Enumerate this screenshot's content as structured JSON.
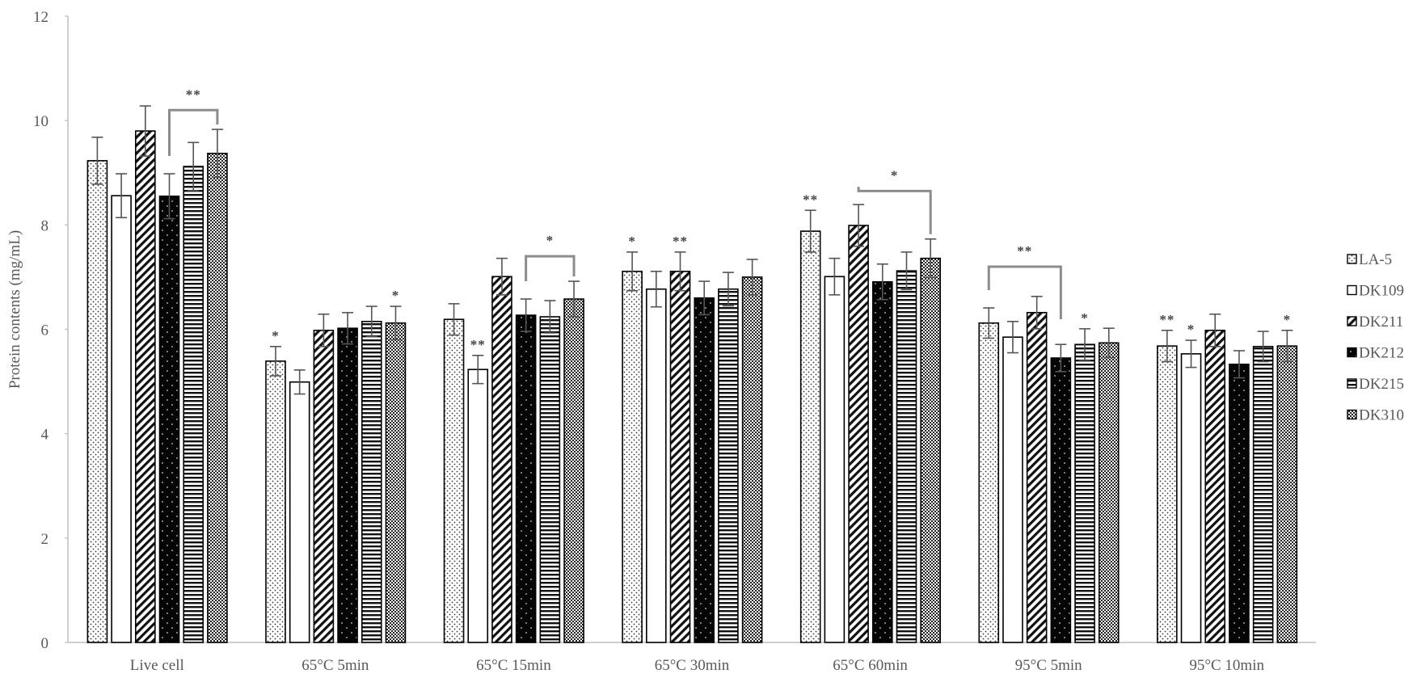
{
  "chart_data": {
    "type": "bar",
    "title": "",
    "xlabel": "",
    "ylabel": "Protein contents (mg/mL)",
    "ylim": [
      0,
      12
    ],
    "yticks": [
      0,
      2,
      4,
      6,
      8,
      10,
      12
    ],
    "grid": false,
    "legend_position": "right",
    "categories": [
      "Live cell",
      "65°C 5min",
      "65°C 15min",
      "65°C 30min",
      "65°C 60min",
      "95°C 5min",
      "95°C 10min"
    ],
    "series": [
      {
        "name": "LA-5",
        "pattern": "dots",
        "values": [
          9.23,
          5.39,
          6.19,
          7.11,
          7.88,
          6.12,
          5.68
        ],
        "errors": [
          0.45,
          0.28,
          0.3,
          0.37,
          0.4,
          0.29,
          0.3
        ]
      },
      {
        "name": "DK109",
        "pattern": "white",
        "values": [
          8.56,
          4.99,
          5.23,
          6.77,
          7.01,
          5.85,
          5.53
        ],
        "errors": [
          0.42,
          0.23,
          0.27,
          0.34,
          0.35,
          0.3,
          0.26
        ]
      },
      {
        "name": "DK211",
        "pattern": "diagonal",
        "values": [
          9.8,
          5.98,
          7.01,
          7.11,
          7.99,
          6.32,
          5.98
        ],
        "errors": [
          0.48,
          0.31,
          0.35,
          0.37,
          0.4,
          0.31,
          0.31
        ]
      },
      {
        "name": "DK212",
        "pattern": "black-dots",
        "values": [
          8.55,
          6.02,
          6.27,
          6.6,
          6.91,
          5.45,
          5.33
        ],
        "errors": [
          0.43,
          0.3,
          0.31,
          0.32,
          0.34,
          0.26,
          0.26
        ]
      },
      {
        "name": "DK215",
        "pattern": "horizontal",
        "values": [
          9.12,
          6.15,
          6.24,
          6.77,
          7.12,
          5.71,
          5.67
        ],
        "errors": [
          0.46,
          0.29,
          0.31,
          0.32,
          0.36,
          0.3,
          0.29
        ]
      },
      {
        "name": "DK310",
        "pattern": "checker",
        "values": [
          9.37,
          6.12,
          6.58,
          7.0,
          7.36,
          5.74,
          5.68
        ],
        "errors": [
          0.46,
          0.32,
          0.34,
          0.34,
          0.37,
          0.28,
          0.3
        ]
      }
    ],
    "annotations": [
      {
        "type": "bracket",
        "category": 0,
        "from": 3,
        "to": 5,
        "level": 10.2,
        "text": "**"
      },
      {
        "type": "star",
        "category": 1,
        "series": 0,
        "text": "*"
      },
      {
        "type": "star",
        "category": 1,
        "series": 5,
        "text": "*"
      },
      {
        "type": "star",
        "category": 2,
        "series": 1,
        "text": "**"
      },
      {
        "type": "bracket",
        "category": 2,
        "from": 3,
        "to": 5,
        "level": 7.4,
        "text": "*"
      },
      {
        "type": "star",
        "category": 3,
        "series": 0,
        "text": "*"
      },
      {
        "type": "star",
        "category": 3,
        "series": 2,
        "text": "**"
      },
      {
        "type": "star",
        "category": 4,
        "series": 0,
        "text": "**"
      },
      {
        "type": "bracket",
        "category": 4,
        "from": 2,
        "to": 5,
        "level": 8.65,
        "text": "*"
      },
      {
        "type": "bracket",
        "category": 5,
        "from": 0,
        "to": 3,
        "level": 7.2,
        "text": "**"
      },
      {
        "type": "star",
        "category": 5,
        "series": 4,
        "text": "*"
      },
      {
        "type": "star",
        "category": 6,
        "series": 0,
        "text": "**"
      },
      {
        "type": "star",
        "category": 6,
        "series": 1,
        "text": "*"
      },
      {
        "type": "star",
        "category": 6,
        "series": 5,
        "text": "*"
      }
    ]
  },
  "colors": {
    "axis": "#bfbfbf",
    "bar_outline": "#000000",
    "error_bar": "#555555",
    "bracket": "#8c8c8c",
    "text": "#595959"
  }
}
